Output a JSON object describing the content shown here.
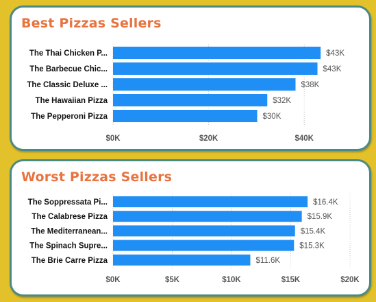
{
  "colors": {
    "background": "#e2c12a",
    "card_border": "#4a8a86",
    "title": "#e8733f",
    "bar": "#1f8ff5"
  },
  "chart_data": [
    {
      "type": "bar",
      "orientation": "horizontal",
      "title": "Best Pizzas Sellers",
      "categories": [
        "The Thai Chicken P...",
        "The Barbecue Chic...",
        "The Classic Deluxe ...",
        "The Hawaiian Pizza",
        "The Pepperoni Pizza"
      ],
      "values": [
        43434,
        42768,
        38180,
        32273,
        30162
      ],
      "value_labels": [
        "$43K",
        "$43K",
        "$38K",
        "$32K",
        "$30K"
      ],
      "xlim": [
        0,
        50000
      ],
      "ticks": [
        0,
        20000,
        40000
      ],
      "tick_labels": [
        "$0K",
        "$20K",
        "$40K"
      ],
      "grid": true
    },
    {
      "type": "bar",
      "orientation": "horizontal",
      "title": "Worst Pizzas Sellers",
      "categories": [
        "The Soppressata Pi...",
        "The Calabrese Pizza",
        "The Mediterranean...",
        "The Spinach Supre...",
        "The Brie Carre Pizza"
      ],
      "values": [
        16425,
        15934,
        15360,
        15277,
        11588
      ],
      "value_labels": [
        "$16.4K",
        "$15.9K",
        "$15.4K",
        "$15.3K",
        "$11.6K"
      ],
      "xlim": [
        0,
        20000
      ],
      "ticks": [
        0,
        5000,
        10000,
        15000,
        20000
      ],
      "tick_labels": [
        "$0K",
        "$5K",
        "$10K",
        "$15K",
        "$20K"
      ],
      "grid": true
    }
  ]
}
